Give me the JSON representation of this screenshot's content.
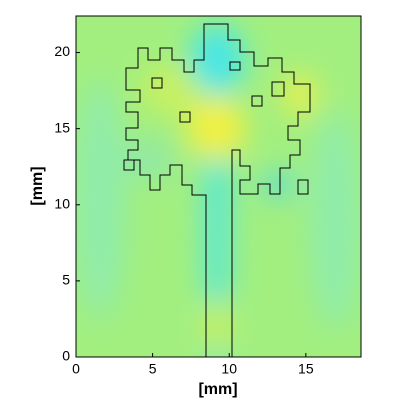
{
  "chart_data": {
    "type": "field",
    "xlabel": "[mm]",
    "ylabel": "[mm]",
    "xlim": [
      0,
      18.6
    ],
    "ylim": [
      0,
      22.4
    ],
    "xticks": [
      0,
      5,
      10,
      15
    ],
    "yticks": [
      0,
      5,
      10,
      15,
      20
    ]
  }
}
